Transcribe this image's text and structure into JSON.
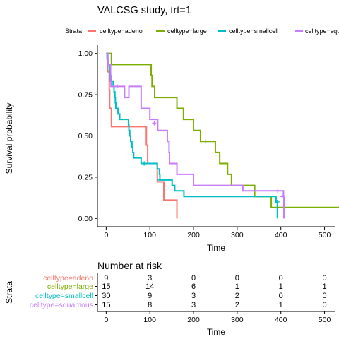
{
  "chart_data": [
    {
      "type": "line",
      "subtype": "kaplan-meier",
      "title": "VALCSG study, trt=1",
      "xlabel": "Time",
      "ylabel": "Survival probability",
      "xlim": [
        -20,
        525
      ],
      "ylim": [
        -0.05,
        1.05
      ],
      "x_ticks": [
        "0",
        "100",
        "200",
        "300",
        "400",
        "500"
      ],
      "y_ticks": [
        "0.00",
        "0.25",
        "0.50",
        "0.75",
        "1.00"
      ],
      "legend": {
        "title": "Strata",
        "position": "top"
      },
      "series": [
        {
          "name": "celltype=adeno",
          "color": "#F8766D",
          "steps": [
            [
              0,
              1.0
            ],
            [
              3,
              0.889
            ],
            [
              7,
              0.778
            ],
            [
              8,
              0.667
            ],
            [
              12,
              0.556
            ],
            [
              92,
              0.444
            ],
            [
              95,
              0.333
            ],
            [
              117,
              0.222
            ],
            [
              132,
              0.111
            ],
            [
              162,
              0.0
            ]
          ],
          "censored": []
        },
        {
          "name": "celltype=large",
          "color": "#7CAE00",
          "steps": [
            [
              0,
              1.0
            ],
            [
              12,
              0.933
            ],
            [
              103,
              0.867
            ],
            [
              105,
              0.8
            ],
            [
              111,
              0.733
            ],
            [
              162,
              0.667
            ],
            [
              177,
              0.6
            ],
            [
              200,
              0.533
            ],
            [
              216,
              0.467
            ],
            [
              250,
              0.4
            ],
            [
              260,
              0.333
            ],
            [
              278,
              0.267
            ],
            [
              287,
              0.2
            ],
            [
              340,
              0.133
            ],
            [
              378,
              0.0667
            ],
            [
              553,
              0.0667
            ]
          ],
          "censored": [
            [
              228,
              0.467
            ]
          ]
        },
        {
          "name": "celltype=smallcell",
          "color": "#00BFC4",
          "steps": [
            [
              0,
              1.0
            ],
            [
              2,
              0.967
            ],
            [
              4,
              0.933
            ],
            [
              7,
              0.9
            ],
            [
              8,
              0.867
            ],
            [
              10,
              0.833
            ],
            [
              16,
              0.8
            ],
            [
              18,
              0.767
            ],
            [
              20,
              0.733
            ],
            [
              21,
              0.7
            ],
            [
              22,
              0.667
            ],
            [
              27,
              0.633
            ],
            [
              31,
              0.6
            ],
            [
              51,
              0.567
            ],
            [
              52,
              0.533
            ],
            [
              54,
              0.5
            ],
            [
              56,
              0.467
            ],
            [
              59,
              0.433
            ],
            [
              61,
              0.4
            ],
            [
              63,
              0.367
            ],
            [
              80,
              0.333
            ],
            [
              117,
              0.3
            ],
            [
              122,
              0.267
            ],
            [
              123,
              0.233
            ],
            [
              151,
              0.2
            ],
            [
              157,
              0.167
            ],
            [
              178,
              0.133
            ],
            [
              384,
              0.133
            ],
            [
              389,
              0.1
            ]
          ],
          "end": [
            392,
            0.0
          ],
          "censored": [
            [
              87,
              0.333
            ],
            [
              123,
              0.233
            ],
            [
              392,
              0.1
            ]
          ]
        },
        {
          "name": "celltype=squamous",
          "color": "#C77CFF",
          "steps": [
            [
              0,
              1.0
            ],
            [
              4,
              0.933
            ],
            [
              10,
              0.867
            ],
            [
              11,
              0.8
            ],
            [
              25,
              0.8
            ],
            [
              42,
              0.733
            ],
            [
              52,
              0.8
            ],
            [
              80,
              0.667
            ],
            [
              100,
              0.6
            ],
            [
              118,
              0.533
            ],
            [
              140,
              0.467
            ],
            [
              144,
              0.4
            ],
            [
              145,
              0.333
            ],
            [
              162,
              0.267
            ],
            [
              200,
              0.2
            ],
            [
              313,
              0.167
            ],
            [
              406,
              0.133
            ],
            [
              407,
              0.0
            ]
          ],
          "censored": [
            [
              25,
              0.8
            ],
            [
              110,
              0.577
            ],
            [
              393,
              0.167
            ],
            [
              403,
              0.133
            ]
          ]
        }
      ]
    },
    {
      "type": "table",
      "title": "Number at risk",
      "ylabel": "Strata",
      "xlabel": "Time",
      "time_points": [
        0,
        100,
        200,
        300,
        400,
        500
      ],
      "x_ticks": [
        "0",
        "100",
        "200",
        "300",
        "400",
        "500"
      ],
      "rows": [
        {
          "name": "celltype=adeno",
          "color": "#F8766D",
          "values": [
            "9",
            "3",
            "0",
            "0",
            "0",
            "0"
          ]
        },
        {
          "name": "celltype=large",
          "color": "#7CAE00",
          "values": [
            "15",
            "14",
            "6",
            "1",
            "1",
            "1"
          ]
        },
        {
          "name": "celltype=smallcell",
          "color": "#00BFC4",
          "values": [
            "30",
            "9",
            "3",
            "2",
            "0",
            "0"
          ]
        },
        {
          "name": "celltype=squamous",
          "color": "#C77CFF",
          "values": [
            "15",
            "8",
            "3",
            "2",
            "1",
            "0"
          ]
        }
      ]
    }
  ]
}
